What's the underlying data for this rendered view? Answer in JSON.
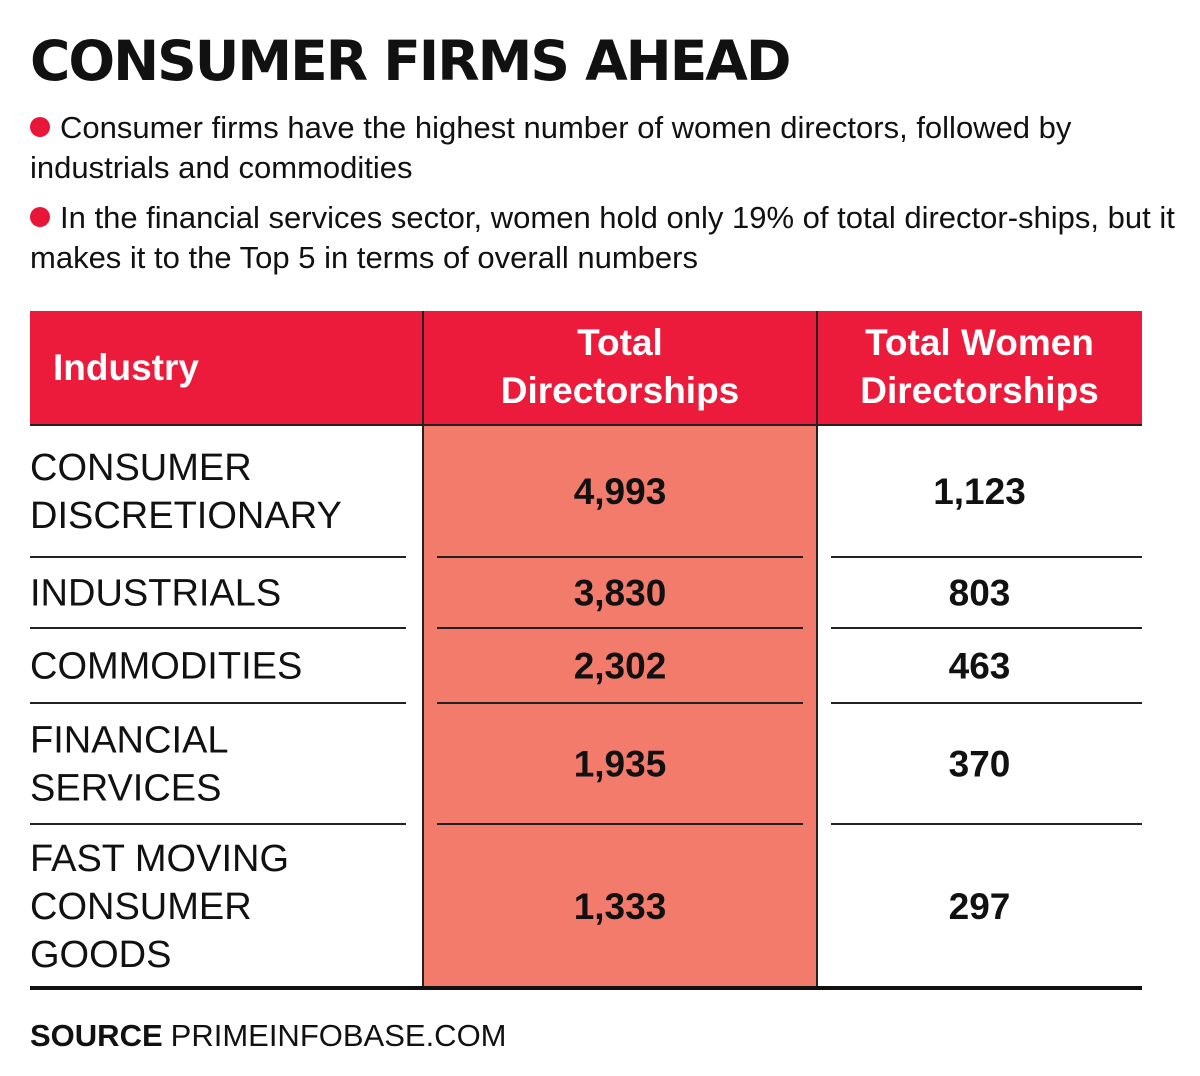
{
  "title": "CONSUMER FIRMS AHEAD",
  "bullets": [
    "Consumer firms have the highest number of women directors, followed by industrials and commodities",
    "In the financial services sector, women hold only 19% of total director-ships, but it makes it to the Top 5 in terms of overall numbers"
  ],
  "colors": {
    "header_bg": "#ec1a3b",
    "highlight_col": "#f37b6c",
    "bullet": "#e8173a",
    "text": "#111111"
  },
  "chart_data": {
    "type": "table",
    "columns": [
      "Industry",
      "Total Directorships",
      "Total Women Directorships"
    ],
    "rows": [
      {
        "industry": "CONSUMER DISCRETIONARY",
        "total": "4,993",
        "women": "1,123"
      },
      {
        "industry": "INDUSTRIALS",
        "total": "3,830",
        "women": "803"
      },
      {
        "industry": "COMMODITIES",
        "total": "2,302",
        "women": "463"
      },
      {
        "industry": "FINANCIAL SERVICES",
        "total": "1,935",
        "women": "370"
      },
      {
        "industry": "FAST MOVING CONSUMER GOODS",
        "total": "1,333",
        "women": "297"
      }
    ]
  },
  "source": {
    "label": "SOURCE",
    "text": "PRIMEINFOBASE.COM"
  }
}
